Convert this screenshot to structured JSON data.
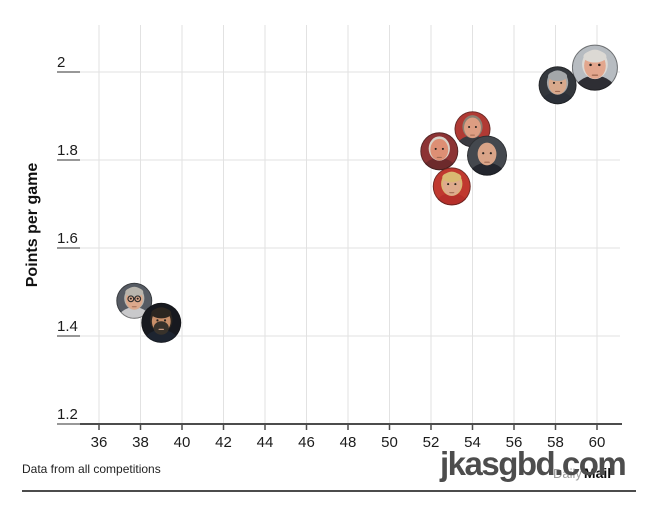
{
  "figure": {
    "footer": {
      "note": "Data from all competitions",
      "brand": {
        "daily": "Daily",
        "mail": "Mail"
      }
    },
    "watermark": {
      "text": "jkasgbd.com"
    }
  },
  "chart_data": {
    "type": "scatter",
    "title": "",
    "xlabel": "",
    "ylabel": "Points per game",
    "x_ticks": [
      36,
      38,
      40,
      42,
      44,
      46,
      48,
      50,
      52,
      54,
      56,
      58,
      60
    ],
    "y_ticks": [
      "2",
      "1.8",
      "1.6",
      "1.4",
      "1.2"
    ],
    "xlim": [
      35.1,
      61.2
    ],
    "ylim": [
      1.19,
      2.11
    ],
    "grid": true,
    "legend": "none",
    "marker_style": "circular cut-out photo of each manager's face",
    "colors": {
      "gridline": "#e2e2e2",
      "axis": "#4c4c4c",
      "tick_label": "#1c1c1c",
      "watermark": "#4d4d4d"
    },
    "points": [
      {
        "id": "moyes",
        "label": "David Moyes",
        "x": 54.0,
        "y": 1.87,
        "r": 18,
        "appearance": {
          "bg": "#b03a34",
          "skin": "#dd9d82",
          "hair": "#8a7f72",
          "style": "side",
          "coat": "#3a3a40"
        }
      },
      {
        "id": "vangaal",
        "label": "Louis van Gaal",
        "x": 52.4,
        "y": 1.82,
        "r": 19,
        "appearance": {
          "bg": "#8c3334",
          "skin": "#dd8f74",
          "hair": "#d8d3c9",
          "style": "side",
          "coat": "#6d2a2c"
        }
      },
      {
        "id": "tenhag",
        "label": "Erik ten Hag",
        "x": 54.7,
        "y": 1.81,
        "r": 20,
        "appearance": {
          "bg": "#44484e",
          "skin": "#d9a488",
          "hair": "#555555",
          "style": "bald",
          "coat": "#23262e"
        }
      },
      {
        "id": "ferguson",
        "label": "Sir Alex Ferguson",
        "x": 59.9,
        "y": 2.01,
        "r": 23,
        "appearance": {
          "bg": "#b7bcc1",
          "skin": "#e2a68d",
          "hair": "#dcd9d4",
          "style": "full",
          "coat": "#2e2e34"
        }
      },
      {
        "id": "rangnick",
        "label": "Ralf Rangnick",
        "x": 37.7,
        "y": 1.48,
        "r": 18,
        "appearance": {
          "bg": "#565b63",
          "skin": "#dca98c",
          "hair": "#b9b5ad",
          "style": "full",
          "glasses": true,
          "coat": "#c9c9cb"
        }
      },
      {
        "id": "mourinho",
        "label": "Jose Mourinho",
        "x": 58.1,
        "y": 1.97,
        "r": 19,
        "appearance": {
          "bg": "#33373c",
          "skin": "#d8a98c",
          "hair": "#a3a7a9",
          "style": "full",
          "coat": "#2b3038"
        }
      },
      {
        "id": "amorim",
        "label": "Ruben Amorim",
        "x": 39.0,
        "y": 1.43,
        "r": 20,
        "appearance": {
          "bg": "#17191f",
          "skin": "#c98f69",
          "hair": "#2c2620",
          "style": "full",
          "beard": "#38322b",
          "coat": "#1d2430"
        }
      },
      {
        "id": "solskjaer",
        "label": "Ole Gunnar Solskjaer",
        "x": 53.0,
        "y": 1.74,
        "r": 19,
        "appearance": {
          "bg": "#c0392f",
          "skin": "#deab8d",
          "hair": "#d9b972",
          "style": "full",
          "coat": "#b62f2a"
        }
      }
    ]
  }
}
